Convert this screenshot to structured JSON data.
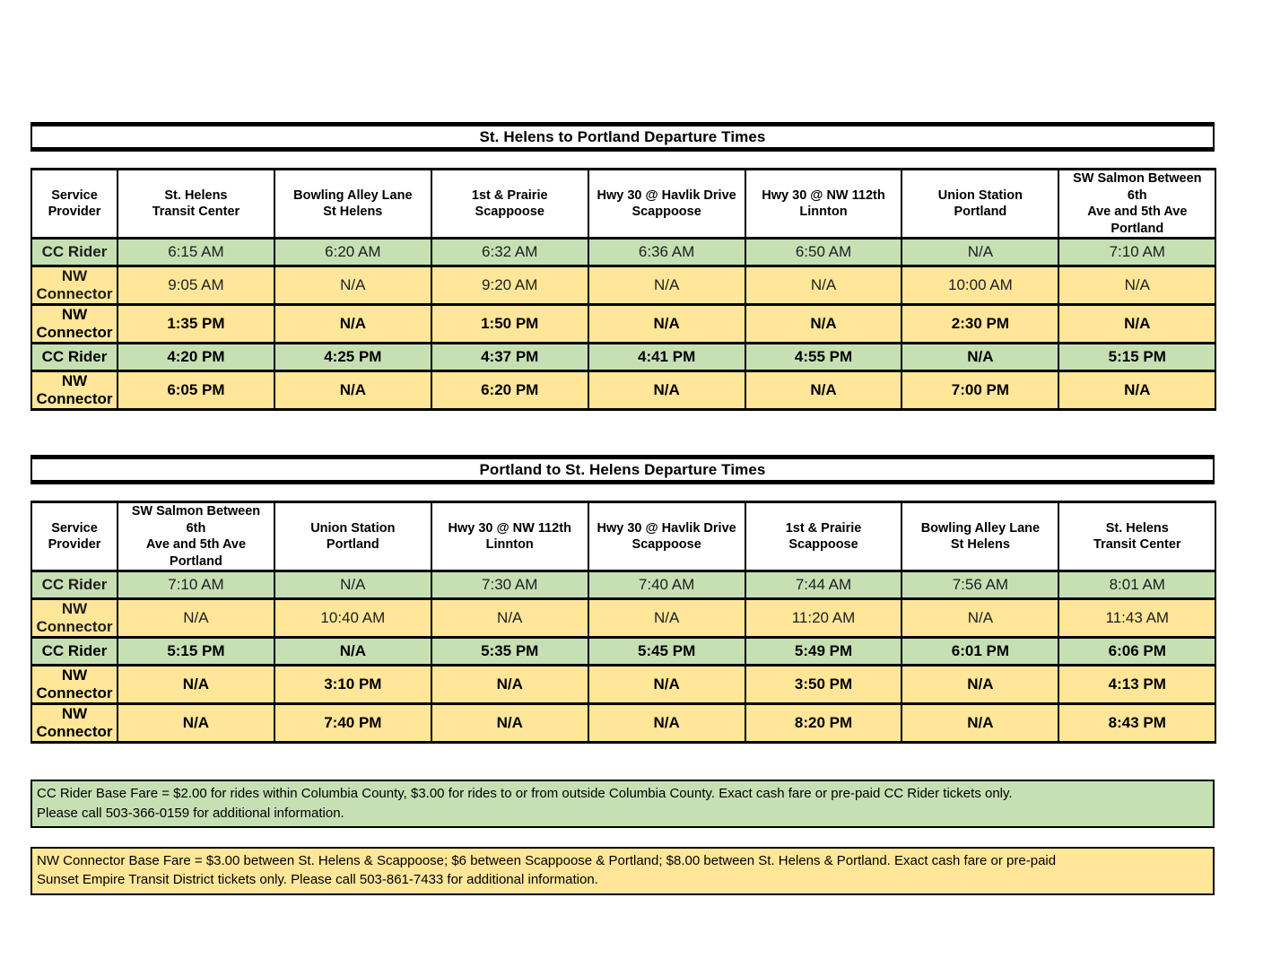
{
  "colors": {
    "cc_rider_green": "#c6e0b4",
    "nw_connector_yellow": "#ffe699",
    "border_black": "#000000"
  },
  "tables": [
    {
      "title": "St. Helens to Portland Departure Times",
      "columns": [
        "Service\nProvider",
        "St. Helens\nTransit Center",
        "Bowling Alley Lane\nSt Helens",
        "1st & Prairie\nScappoose",
        "Hwy 30 @ Havlik Drive\nScappoose",
        "Hwy 30 @ NW 112th\nLinnton",
        "Union Station\nPortland",
        "SW Salmon Between 6th\nAve and 5th Ave\nPortland"
      ],
      "rows": [
        {
          "provider": "CC Rider",
          "color": "green",
          "bold": false,
          "times": [
            "6:15 AM",
            "6:20 AM",
            "6:32 AM",
            "6:36 AM",
            "6:50 AM",
            "N/A",
            "7:10 AM"
          ]
        },
        {
          "provider": "NW Connector",
          "color": "yellow",
          "bold": false,
          "times": [
            "9:05 AM",
            "N/A",
            "9:20 AM",
            "N/A",
            "N/A",
            "10:00 AM",
            "N/A"
          ]
        },
        {
          "provider": "NW Connector",
          "color": "yellow",
          "bold": true,
          "times": [
            "1:35 PM",
            "N/A",
            "1:50 PM",
            "N/A",
            "N/A",
            "2:30 PM",
            "N/A"
          ]
        },
        {
          "provider": "CC Rider",
          "color": "green",
          "bold": true,
          "times": [
            "4:20 PM",
            "4:25 PM",
            "4:37 PM",
            "4:41 PM",
            "4:55 PM",
            "N/A",
            "5:15 PM"
          ]
        },
        {
          "provider": "NW Connector",
          "color": "yellow",
          "bold": true,
          "times": [
            "6:05 PM",
            "N/A",
            "6:20 PM",
            "N/A",
            "N/A",
            "7:00 PM",
            "N/A"
          ]
        }
      ]
    },
    {
      "title": "Portland to St. Helens Departure Times",
      "columns": [
        "Service\nProvider",
        "SW Salmon Between 6th\nAve and 5th Ave\nPortland",
        "Union Station\nPortland",
        "Hwy 30 @ NW 112th\nLinnton",
        "Hwy 30 @ Havlik Drive\nScappoose",
        "1st & Prairie\nScappoose",
        "Bowling Alley Lane\nSt Helens",
        "St. Helens\nTransit Center"
      ],
      "rows": [
        {
          "provider": "CC Rider",
          "color": "green",
          "bold": false,
          "times": [
            "7:10 AM",
            "N/A",
            "7:30 AM",
            "7:40 AM",
            "7:44 AM",
            "7:56 AM",
            "8:01 AM"
          ]
        },
        {
          "provider": "NW Connector",
          "color": "yellow",
          "bold": false,
          "times": [
            "N/A",
            "10:40 AM",
            "N/A",
            "N/A",
            "11:20 AM",
            "N/A",
            "11:43 AM"
          ]
        },
        {
          "provider": "CC Rider",
          "color": "green",
          "bold": true,
          "times": [
            "5:15 PM",
            "N/A",
            "5:35 PM",
            "5:45 PM",
            "5:49 PM",
            "6:01 PM",
            "6:06 PM"
          ]
        },
        {
          "provider": "NW Connector",
          "color": "yellow",
          "bold": true,
          "times": [
            "N/A",
            "3:10 PM",
            "N/A",
            "N/A",
            "3:50 PM",
            "N/A",
            "4:13 PM"
          ]
        },
        {
          "provider": "NW Connector",
          "color": "yellow",
          "bold": true,
          "times": [
            "N/A",
            "7:40 PM",
            "N/A",
            "N/A",
            "8:20 PM",
            "N/A",
            "8:43 PM"
          ]
        }
      ]
    }
  ],
  "notes": [
    {
      "color": "green",
      "lines": [
        "CC Rider Base Fare = $2.00 for rides within Columbia County, $3.00 for rides to or from outside Columbia County.  Exact cash fare or pre-paid CC Rider tickets only.",
        "Please call 503-366-0159 for additional information."
      ]
    },
    {
      "color": "yellow",
      "lines": [
        "NW Connector Base Fare = $3.00 between St. Helens & Scappoose; $6 between Scappoose & Portland; $8.00 between St. Helens & Portland.  Exact cash fare or pre-paid",
        "Sunset Empire Transit District tickets only.  Please call 503-861-7433 for additional information."
      ]
    }
  ]
}
